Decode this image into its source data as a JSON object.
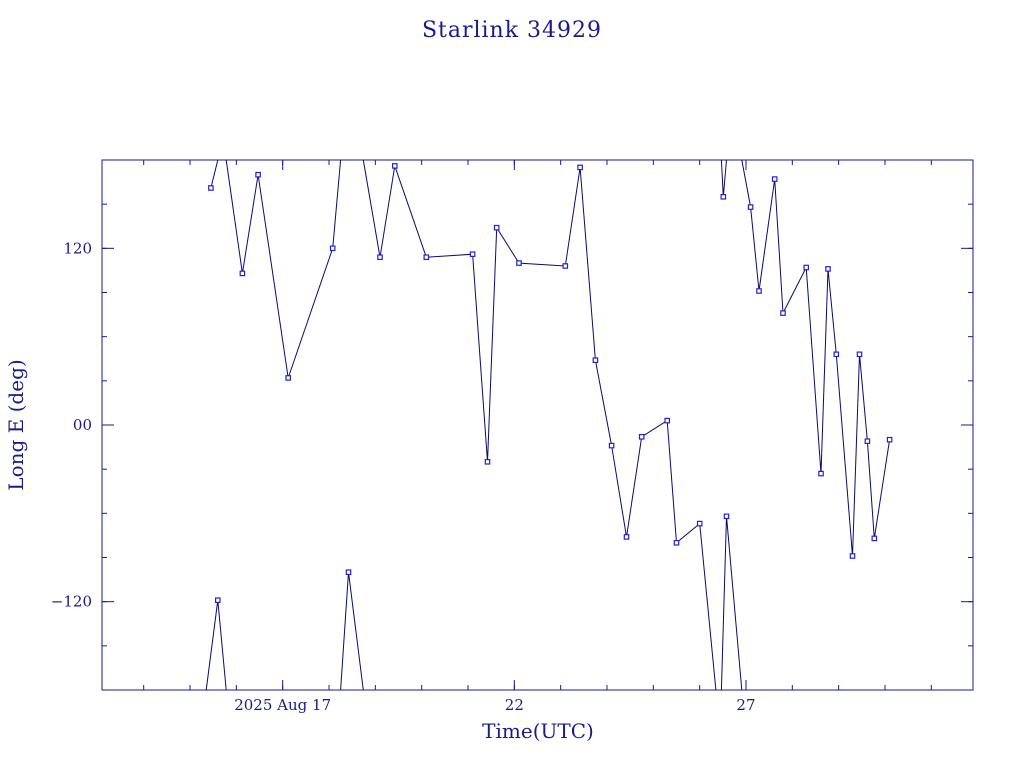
{
  "chart_data": {
    "type": "line",
    "title": "Starlink 34929",
    "xlabel": "Time(UTC)",
    "ylabel": "Long E (deg)",
    "x_unit": "days",
    "x_ticks": [
      {
        "value": 17,
        "label": "2025 Aug 17"
      },
      {
        "value": 22,
        "label": "22"
      },
      {
        "value": 27,
        "label": "27"
      }
    ],
    "y_ticks": [
      {
        "value": 120,
        "label": "120"
      },
      {
        "value": 0,
        "label": "00"
      },
      {
        "value": -120,
        "label": "−120"
      }
    ],
    "xlim": [
      13.1,
      31.9
    ],
    "ylim": [
      -180,
      180
    ],
    "x_minor_step": 1,
    "y_minor_step": 30,
    "segments": [
      [
        {
          "x": 15.45,
          "y": 161
        },
        {
          "x": 15.6,
          "y": 180
        }
      ],
      [
        {
          "x": 15.78,
          "y": 180
        },
        {
          "x": 16.13,
          "y": 103
        },
        {
          "x": 16.47,
          "y": 170
        },
        {
          "x": 17.12,
          "y": 32
        },
        {
          "x": 18.08,
          "y": 120
        },
        {
          "x": 18.25,
          "y": 180
        }
      ],
      [
        {
          "x": 18.74,
          "y": 180
        },
        {
          "x": 19.1,
          "y": 114
        },
        {
          "x": 19.42,
          "y": 176
        },
        {
          "x": 20.1,
          "y": 114
        },
        {
          "x": 21.1,
          "y": 116
        },
        {
          "x": 21.42,
          "y": -25
        },
        {
          "x": 21.62,
          "y": 134
        },
        {
          "x": 22.1,
          "y": 110
        },
        {
          "x": 23.1,
          "y": 108
        },
        {
          "x": 23.42,
          "y": 175
        },
        {
          "x": 23.75,
          "y": 44
        },
        {
          "x": 24.1,
          "y": -14
        },
        {
          "x": 24.42,
          "y": -76
        },
        {
          "x": 24.75,
          "y": -8
        },
        {
          "x": 25.3,
          "y": 3
        },
        {
          "x": 25.5,
          "y": -80
        },
        {
          "x": 26.0,
          "y": -67
        },
        {
          "x": 26.35,
          "y": -180
        }
      ],
      [
        {
          "x": 26.47,
          "y": 180
        },
        {
          "x": 26.51,
          "y": 155
        },
        {
          "x": 26.58,
          "y": 180
        }
      ],
      [
        {
          "x": 26.91,
          "y": 180
        },
        {
          "x": 27.1,
          "y": 148
        },
        {
          "x": 27.28,
          "y": 91
        },
        {
          "x": 27.62,
          "y": 167
        },
        {
          "x": 27.8,
          "y": 76
        },
        {
          "x": 28.3,
          "y": 107
        },
        {
          "x": 28.62,
          "y": -33
        },
        {
          "x": 28.77,
          "y": 106
        },
        {
          "x": 28.95,
          "y": 48
        },
        {
          "x": 29.3,
          "y": -89
        },
        {
          "x": 29.45,
          "y": 48
        },
        {
          "x": 29.62,
          "y": -11
        },
        {
          "x": 29.77,
          "y": -77
        },
        {
          "x": 30.1,
          "y": -10
        }
      ],
      [
        {
          "x": 15.35,
          "y": -180
        },
        {
          "x": 15.6,
          "y": -119
        },
        {
          "x": 15.78,
          "y": -180
        }
      ],
      [
        {
          "x": 18.25,
          "y": -180
        },
        {
          "x": 18.42,
          "y": -100
        },
        {
          "x": 18.74,
          "y": -180
        }
      ],
      [
        {
          "x": 26.47,
          "y": -180
        },
        {
          "x": 26.58,
          "y": -62
        },
        {
          "x": 26.91,
          "y": -180
        }
      ]
    ],
    "points": [
      {
        "x": 15.45,
        "y": 161
      },
      {
        "x": 16.13,
        "y": 103
      },
      {
        "x": 16.47,
        "y": 170
      },
      {
        "x": 17.12,
        "y": 32
      },
      {
        "x": 18.08,
        "y": 120
      },
      {
        "x": 19.1,
        "y": 114
      },
      {
        "x": 19.42,
        "y": 176
      },
      {
        "x": 20.1,
        "y": 114
      },
      {
        "x": 21.1,
        "y": 116
      },
      {
        "x": 21.42,
        "y": -25
      },
      {
        "x": 21.62,
        "y": 134
      },
      {
        "x": 22.1,
        "y": 110
      },
      {
        "x": 23.1,
        "y": 108
      },
      {
        "x": 23.42,
        "y": 175
      },
      {
        "x": 23.75,
        "y": 44
      },
      {
        "x": 24.1,
        "y": -14
      },
      {
        "x": 24.42,
        "y": -76
      },
      {
        "x": 24.75,
        "y": -8
      },
      {
        "x": 25.3,
        "y": 3
      },
      {
        "x": 25.5,
        "y": -80
      },
      {
        "x": 26.0,
        "y": -67
      },
      {
        "x": 26.51,
        "y": 155
      },
      {
        "x": 27.1,
        "y": 148
      },
      {
        "x": 27.28,
        "y": 91
      },
      {
        "x": 27.62,
        "y": 167
      },
      {
        "x": 27.8,
        "y": 76
      },
      {
        "x": 28.3,
        "y": 107
      },
      {
        "x": 28.62,
        "y": -33
      },
      {
        "x": 28.77,
        "y": 106
      },
      {
        "x": 28.95,
        "y": 48
      },
      {
        "x": 29.3,
        "y": -89
      },
      {
        "x": 29.45,
        "y": 48
      },
      {
        "x": 29.62,
        "y": -11
      },
      {
        "x": 29.77,
        "y": -77
      },
      {
        "x": 30.1,
        "y": -10
      },
      {
        "x": 15.6,
        "y": -119
      },
      {
        "x": 18.42,
        "y": -100
      },
      {
        "x": 26.58,
        "y": -62
      }
    ],
    "grid": false,
    "colors": {
      "axis": "#1a1a8c",
      "line": "#0a0a6e",
      "marker": "#2222cc"
    }
  }
}
